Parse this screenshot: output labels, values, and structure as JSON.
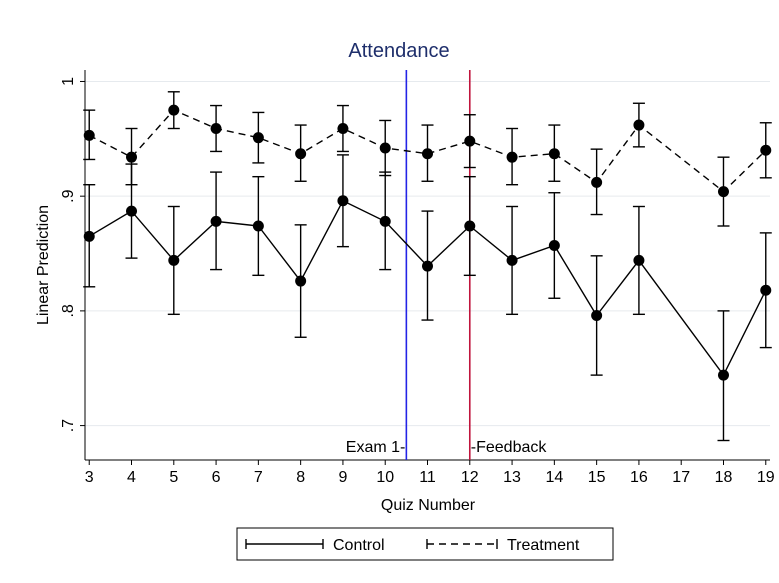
{
  "chart_data": {
    "type": "line",
    "title": "Attendance",
    "xlabel": "Quiz Number",
    "ylabel": "Linear Prediction",
    "x": [
      3,
      4,
      5,
      6,
      7,
      8,
      9,
      10,
      11,
      12,
      13,
      14,
      15,
      16,
      17,
      18,
      19
    ],
    "xlim": [
      2.9,
      19.1
    ],
    "ylim": [
      0.67,
      1.01
    ],
    "yticks": [
      0.7,
      0.8,
      0.9,
      1.0
    ],
    "ytick_labels": [
      ".7",
      ".8",
      ".9",
      "1"
    ],
    "grid": "horizontal",
    "legend_position": "bottom",
    "series": [
      {
        "name": "Control",
        "style": "solid",
        "x": [
          3,
          4,
          5,
          6,
          7,
          8,
          9,
          10,
          11,
          12,
          13,
          14,
          15,
          16,
          18,
          19
        ],
        "y": [
          0.865,
          0.887,
          0.844,
          0.878,
          0.874,
          0.826,
          0.896,
          0.878,
          0.839,
          0.874,
          0.844,
          0.857,
          0.796,
          0.844,
          0.744,
          0.818
        ],
        "lo": [
          0.821,
          0.846,
          0.797,
          0.836,
          0.831,
          0.777,
          0.856,
          0.836,
          0.792,
          0.831,
          0.797,
          0.811,
          0.744,
          0.797,
          0.687,
          0.768
        ],
        "hi": [
          0.91,
          0.928,
          0.891,
          0.921,
          0.917,
          0.875,
          0.936,
          0.921,
          0.887,
          0.917,
          0.891,
          0.903,
          0.848,
          0.891,
          0.8,
          0.868
        ]
      },
      {
        "name": "Treatment",
        "style": "dashed",
        "x": [
          3,
          4,
          5,
          6,
          7,
          8,
          9,
          10,
          11,
          12,
          13,
          14,
          15,
          16,
          18,
          19
        ],
        "y": [
          0.953,
          0.934,
          0.975,
          0.959,
          0.951,
          0.937,
          0.959,
          0.942,
          0.937,
          0.948,
          0.934,
          0.937,
          0.912,
          0.962,
          0.904,
          0.94
        ],
        "lo": [
          0.932,
          0.91,
          0.959,
          0.939,
          0.929,
          0.913,
          0.939,
          0.918,
          0.913,
          0.925,
          0.91,
          0.913,
          0.884,
          0.943,
          0.874,
          0.916
        ],
        "hi": [
          0.975,
          0.959,
          0.991,
          0.979,
          0.973,
          0.962,
          0.979,
          0.966,
          0.962,
          0.971,
          0.959,
          0.962,
          0.941,
          0.981,
          0.934,
          0.964
        ]
      }
    ],
    "reference_lines": [
      {
        "x": 10.5,
        "color": "#2323e6",
        "label": "Exam 1-",
        "label_side": "left"
      },
      {
        "x": 12.0,
        "color": "#c0143c",
        "label": "-Feedback",
        "label_side": "right"
      }
    ]
  }
}
